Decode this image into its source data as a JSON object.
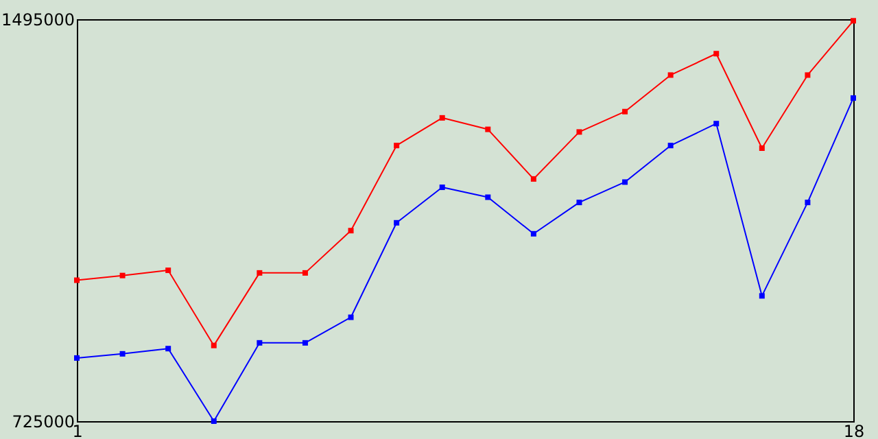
{
  "chart_data": {
    "type": "line",
    "x": [
      1,
      2,
      3,
      4,
      5,
      6,
      7,
      8,
      9,
      10,
      11,
      12,
      13,
      14,
      15,
      16,
      17,
      18
    ],
    "series": [
      {
        "color": "#ff0000",
        "values": [
          995000,
          1004000,
          1014000,
          870000,
          1009000,
          1009000,
          1090000,
          1253000,
          1306000,
          1284000,
          1189000,
          1279000,
          1318000,
          1388000,
          1429000,
          1248000,
          1388000,
          1492000
        ]
      },
      {
        "color": "#0000ff",
        "values": [
          846000,
          854000,
          864000,
          725000,
          875000,
          875000,
          924000,
          1105000,
          1173000,
          1154000,
          1084000,
          1144000,
          1183000,
          1253000,
          1295000,
          965000,
          1144000,
          1344000
        ]
      }
    ],
    "xlim": [
      1,
      18
    ],
    "xticks": [
      1,
      18
    ],
    "ylim": [
      725000,
      1495000
    ],
    "yticks": [
      725000,
      1495000
    ],
    "grid": false,
    "legend": false,
    "marker": "square",
    "line_style": "solid"
  }
}
